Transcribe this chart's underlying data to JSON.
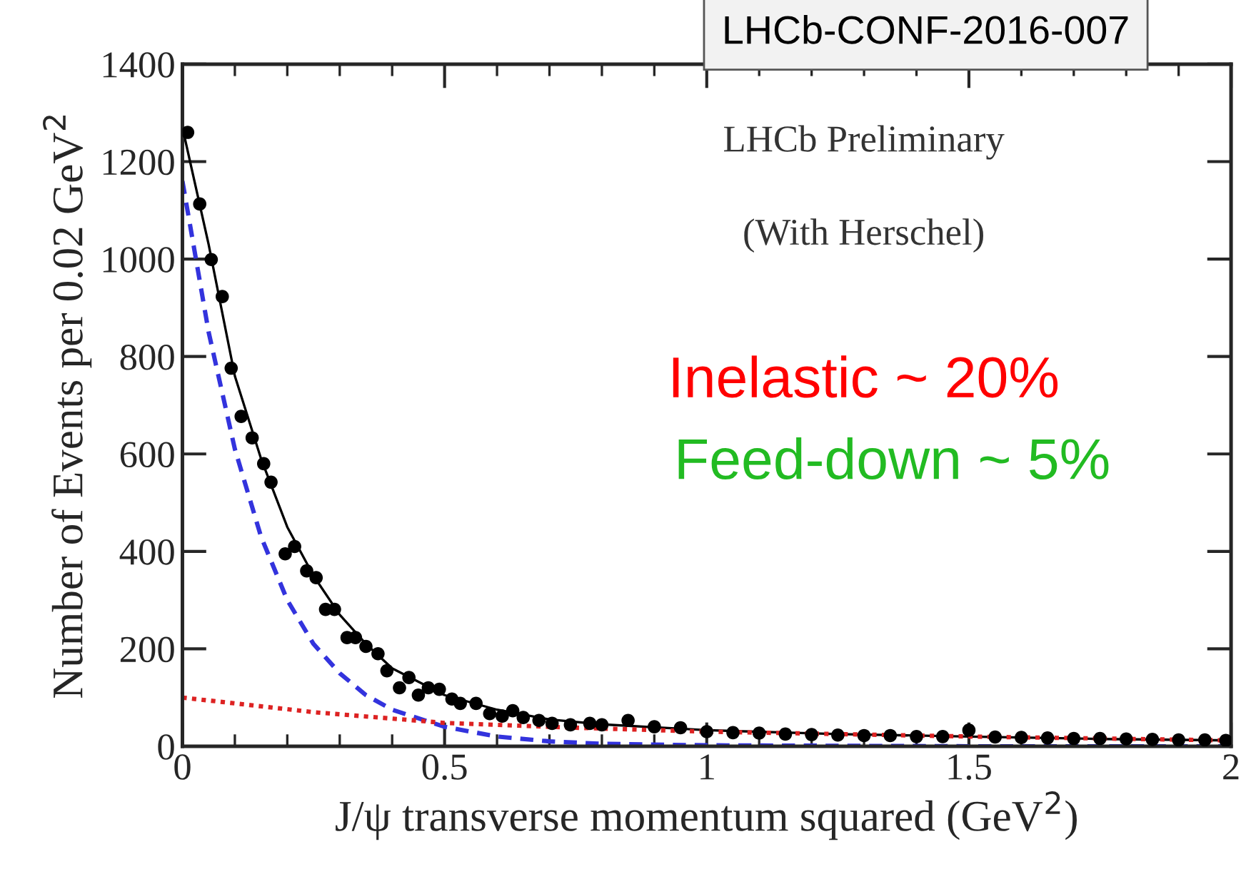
{
  "chart_data": {
    "type": "scatter",
    "xlabel": "J/ψ transverse momentum squared (GeV$^{2}$)",
    "ylabel": "Number of Events per 0.02 GeV$^{2}$",
    "annotations": [
      "LHCb-CONF-2016-007",
      "LHCb Preliminary",
      "(With Herschel)",
      "Inelastic ~ 20%",
      "Feed-down ~ 5%"
    ],
    "xlim": [
      0,
      2
    ],
    "xticks": [
      0,
      0.5,
      1,
      1.5,
      2
    ],
    "ylim": [
      0,
      1400
    ],
    "yticks": [
      0,
      200,
      400,
      600,
      800,
      1000,
      1200,
      1400
    ],
    "grid": false,
    "legend": false,
    "series": [
      {
        "color": "#000000",
        "marker": "circle",
        "x": [
          0.01,
          0.033,
          0.055,
          0.076,
          0.093,
          0.112,
          0.133,
          0.155,
          0.169,
          0.196,
          0.214,
          0.237,
          0.255,
          0.273,
          0.29,
          0.314,
          0.33,
          0.35,
          0.373,
          0.39,
          0.414,
          0.432,
          0.45,
          0.469,
          0.49,
          0.514,
          0.53,
          0.56,
          0.586,
          0.61,
          0.63,
          0.65,
          0.68,
          0.705,
          0.74,
          0.777,
          0.8,
          0.85,
          0.9,
          0.95,
          1.0,
          1.05,
          1.1,
          1.15,
          1.2,
          1.25,
          1.3,
          1.35,
          1.4,
          1.45,
          1.5,
          1.55,
          1.6,
          1.65,
          1.7,
          1.75,
          1.8,
          1.85,
          1.9,
          1.95,
          1.99
        ],
        "values": [
          1260,
          1113,
          999,
          923,
          776,
          677,
          633,
          580,
          542,
          395,
          410,
          360,
          346,
          281,
          281,
          223,
          223,
          205,
          190,
          155,
          120,
          141,
          105,
          120,
          117,
          97,
          88,
          88,
          67,
          62,
          73,
          59,
          53,
          47,
          44,
          47,
          44,
          53,
          40,
          38,
          30,
          28,
          27,
          25,
          24,
          23,
          22,
          22,
          20,
          20,
          33,
          19,
          18,
          17,
          16,
          16,
          15,
          14,
          13,
          13,
          12
        ]
      },
      {
        "type": "line",
        "color": "#000000",
        "line_style": "solid",
        "x": [
          0,
          0.05,
          0.1,
          0.15,
          0.2,
          0.25,
          0.3,
          0.35,
          0.4,
          0.5,
          0.6,
          0.7,
          0.8,
          1.0,
          1.25,
          1.5,
          1.75,
          2.0
        ],
        "values": [
          1270,
          1030,
          760,
          590,
          450,
          350,
          270,
          210,
          160,
          105,
          75,
          55,
          45,
          33,
          25,
          20,
          15,
          12
        ]
      },
      {
        "type": "line",
        "color": "#3333dd",
        "line_style": "dashed",
        "x": [
          0,
          0.05,
          0.1,
          0.15,
          0.2,
          0.25,
          0.3,
          0.35,
          0.4,
          0.5,
          0.6,
          0.7,
          0.8,
          1.0,
          1.5,
          2.0
        ],
        "values": [
          1160,
          850,
          610,
          430,
          300,
          210,
          150,
          105,
          75,
          40,
          20,
          10,
          5,
          2,
          0,
          0
        ]
      },
      {
        "type": "line",
        "color": "#dd2222",
        "line_style": "dotted",
        "x": [
          0,
          0.25,
          0.5,
          0.75,
          1.0,
          1.5,
          2.0
        ],
        "values": [
          100,
          70,
          48,
          38,
          30,
          20,
          12
        ]
      }
    ]
  }
}
